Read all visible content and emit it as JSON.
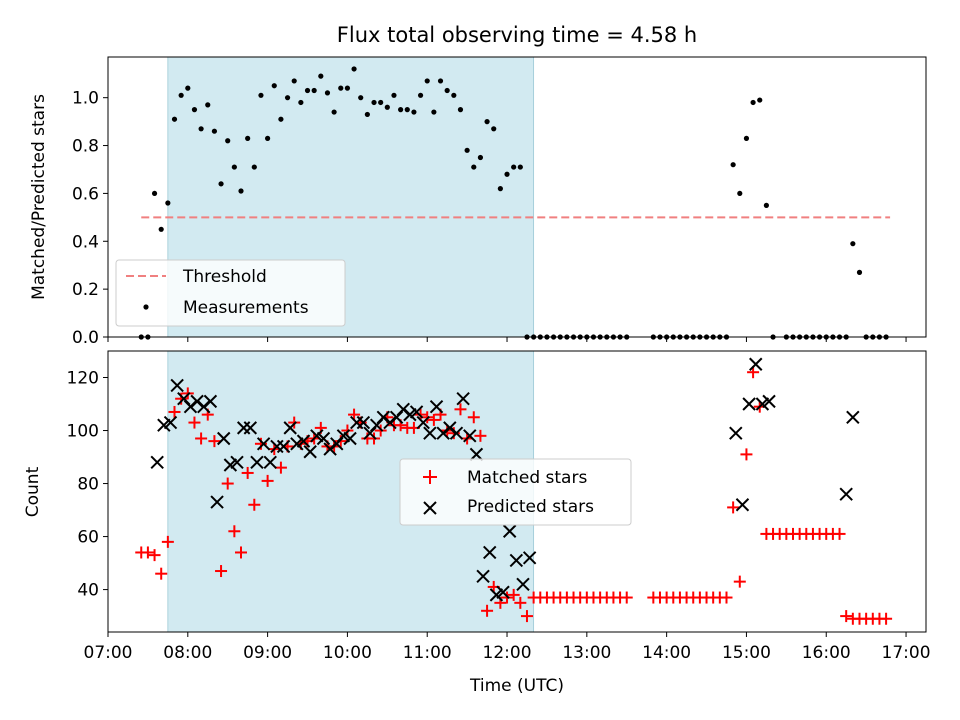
{
  "title": "Flux total observing time = 4.58 h",
  "chart_data": [
    {
      "type": "scatter",
      "panel": "top",
      "ylabel": "Matched/Predicted stars",
      "ylim": [
        0,
        1.17
      ],
      "yticks": [
        0.0,
        0.2,
        0.4,
        0.6,
        0.8,
        1.0
      ],
      "ytick_labels": [
        "0.0",
        "0.2",
        "0.4",
        "0.6",
        "0.8",
        "1.0"
      ],
      "shaded_span": {
        "start": "07:45",
        "end": "12:20"
      },
      "threshold": {
        "name": "Threshold",
        "value": 0.5,
        "start": "07:25",
        "end": "16:48",
        "color": "#f08080"
      },
      "legend": {
        "placement": "lower-left",
        "entries": [
          "Threshold",
          "Measurements"
        ]
      },
      "series": [
        {
          "name": "Measurements",
          "color": "#000000",
          "x": [
            "07:25",
            "07:30",
            "07:35",
            "07:40",
            "07:45",
            "07:50",
            "07:55",
            "08:00",
            "08:05",
            "08:10",
            "08:15",
            "08:20",
            "08:25",
            "08:30",
            "08:35",
            "08:40",
            "08:45",
            "08:50",
            "08:55",
            "09:00",
            "09:05",
            "09:10",
            "09:15",
            "09:20",
            "09:25",
            "09:30",
            "09:35",
            "09:40",
            "09:45",
            "09:50",
            "09:55",
            "10:00",
            "10:05",
            "10:10",
            "10:15",
            "10:20",
            "10:25",
            "10:30",
            "10:35",
            "10:40",
            "10:45",
            "10:50",
            "10:55",
            "11:00",
            "11:05",
            "11:10",
            "11:15",
            "11:20",
            "11:25",
            "11:30",
            "11:35",
            "11:40",
            "11:45",
            "11:50",
            "11:55",
            "12:00",
            "12:05",
            "12:10",
            "12:15",
            "12:20",
            "12:25",
            "12:30",
            "12:35",
            "12:40",
            "12:45",
            "12:50",
            "12:55",
            "13:00",
            "13:05",
            "13:10",
            "13:15",
            "13:20",
            "13:25",
            "13:30",
            "13:50",
            "13:55",
            "14:00",
            "14:05",
            "14:10",
            "14:15",
            "14:20",
            "14:25",
            "14:30",
            "14:35",
            "14:40",
            "14:45",
            "14:50",
            "14:55",
            "15:00",
            "15:05",
            "15:10",
            "15:15",
            "15:20",
            "15:30",
            "15:35",
            "15:40",
            "15:45",
            "15:50",
            "15:55",
            "16:00",
            "16:05",
            "16:10",
            "16:15",
            "16:20",
            "16:25",
            "16:30",
            "16:35",
            "16:40",
            "16:45"
          ],
          "y": [
            0.0,
            0.0,
            0.6,
            0.45,
            0.56,
            0.91,
            1.01,
            1.04,
            0.95,
            0.87,
            0.97,
            0.86,
            0.64,
            0.82,
            0.71,
            0.61,
            0.83,
            0.71,
            1.01,
            0.83,
            1.05,
            0.91,
            1.0,
            1.07,
            0.98,
            1.03,
            1.03,
            1.09,
            1.02,
            0.94,
            1.04,
            1.04,
            1.12,
            1.0,
            0.93,
            0.98,
            0.98,
            0.96,
            1.01,
            0.95,
            0.95,
            0.94,
            1.01,
            1.07,
            0.94,
            1.07,
            1.03,
            1.01,
            0.95,
            0.78,
            0.71,
            0.75,
            0.9,
            0.87,
            0.62,
            0.68,
            0.71,
            0.71,
            0.0,
            0.0,
            0.0,
            0.0,
            0.0,
            0.0,
            0.0,
            0.0,
            0.0,
            0.0,
            0.0,
            0.0,
            0.0,
            0.0,
            0.0,
            0.0,
            0.0,
            0.0,
            0.0,
            0.0,
            0.0,
            0.0,
            0.0,
            0.0,
            0.0,
            0.0,
            0.0,
            0.0,
            0.72,
            0.6,
            0.83,
            0.98,
            0.99,
            0.55,
            0.0,
            0.0,
            0.0,
            0.0,
            0.0,
            0.0,
            0.0,
            0.0,
            0.0,
            0.0,
            0.0,
            0.39,
            0.27,
            0.0,
            0.0,
            0.0,
            0.0
          ]
        }
      ]
    },
    {
      "type": "scatter",
      "panel": "bottom",
      "ylabel": "Count",
      "xlabel": "Time (UTC)",
      "xlim": [
        "07:00",
        "17:15"
      ],
      "xticks": [
        "07:00",
        "08:00",
        "09:00",
        "10:00",
        "11:00",
        "12:00",
        "13:00",
        "14:00",
        "15:00",
        "16:00",
        "17:00"
      ],
      "ylim": [
        24,
        130
      ],
      "yticks": [
        40,
        60,
        80,
        100,
        120
      ],
      "ytick_labels": [
        "40",
        "60",
        "80",
        "100",
        "120"
      ],
      "shaded_span": {
        "start": "07:45",
        "end": "12:20"
      },
      "legend": {
        "placement": "center",
        "entries": [
          "Matched stars",
          "Predicted stars"
        ]
      },
      "series": [
        {
          "name": "Matched stars",
          "marker": "+",
          "color": "#ff0000",
          "x": [
            "07:25",
            "07:30",
            "07:35",
            "07:40",
            "07:45",
            "07:50",
            "07:55",
            "08:00",
            "08:05",
            "08:10",
            "08:15",
            "08:20",
            "08:25",
            "08:30",
            "08:35",
            "08:40",
            "08:45",
            "08:50",
            "08:55",
            "09:00",
            "09:05",
            "09:10",
            "09:15",
            "09:20",
            "09:25",
            "09:30",
            "09:35",
            "09:40",
            "09:45",
            "09:50",
            "09:55",
            "10:00",
            "10:05",
            "10:10",
            "10:15",
            "10:20",
            "10:25",
            "10:30",
            "10:35",
            "10:40",
            "10:45",
            "10:50",
            "10:55",
            "11:00",
            "11:05",
            "11:10",
            "11:15",
            "11:20",
            "11:25",
            "11:30",
            "11:35",
            "11:40",
            "11:45",
            "11:50",
            "11:55",
            "12:00",
            "12:05",
            "12:10",
            "12:15",
            "12:20",
            "12:25",
            "12:30",
            "12:35",
            "12:40",
            "12:45",
            "12:50",
            "12:55",
            "13:00",
            "13:05",
            "13:10",
            "13:15",
            "13:20",
            "13:25",
            "13:30",
            "13:50",
            "13:55",
            "14:00",
            "14:05",
            "14:10",
            "14:15",
            "14:20",
            "14:25",
            "14:30",
            "14:35",
            "14:40",
            "14:45",
            "14:50",
            "14:55",
            "15:00",
            "15:05",
            "15:10",
            "15:15",
            "15:20",
            "15:25",
            "15:30",
            "15:35",
            "15:40",
            "15:45",
            "15:50",
            "15:55",
            "16:00",
            "16:05",
            "16:10",
            "16:15",
            "16:20",
            "16:25",
            "16:30",
            "16:35",
            "16:40",
            "16:45"
          ],
          "y": [
            54,
            54,
            53,
            46,
            58,
            107,
            112,
            114,
            103,
            97,
            106,
            96,
            47,
            80,
            62,
            54,
            84,
            72,
            95,
            81,
            93,
            86,
            94,
            103,
            95,
            96,
            97,
            101,
            94,
            94,
            96,
            100,
            106,
            103,
            97,
            97,
            100,
            105,
            102,
            102,
            101,
            101,
            106,
            105,
            104,
            106,
            100,
            99,
            108,
            97,
            105,
            98,
            32,
            41,
            35,
            37,
            38,
            35,
            30,
            37,
            37,
            37,
            37,
            37,
            37,
            37,
            37,
            37,
            37,
            37,
            37,
            37,
            37,
            37,
            37,
            37,
            37,
            37,
            37,
            37,
            37,
            37,
            37,
            37,
            37,
            37,
            71,
            43,
            91,
            122,
            109,
            61,
            61,
            61,
            61,
            61,
            61,
            61,
            61,
            61,
            61,
            61,
            61,
            30,
            29,
            29,
            29,
            29,
            29,
            29
          ]
        },
        {
          "name": "Predicted stars",
          "marker": "x",
          "color": "#000000",
          "x": [
            "07:37",
            "07:42",
            "07:47",
            "07:52",
            "07:57",
            "08:02",
            "08:07",
            "08:12",
            "08:17",
            "08:22",
            "08:27",
            "08:32",
            "08:37",
            "08:42",
            "08:47",
            "08:52",
            "08:57",
            "09:02",
            "09:07",
            "09:12",
            "09:17",
            "09:22",
            "09:27",
            "09:32",
            "09:37",
            "09:42",
            "09:47",
            "09:52",
            "09:57",
            "10:02",
            "10:07",
            "10:12",
            "10:17",
            "10:22",
            "10:27",
            "10:32",
            "10:37",
            "10:42",
            "10:47",
            "10:52",
            "10:57",
            "11:02",
            "11:07",
            "11:12",
            "11:17",
            "11:22",
            "11:27",
            "11:32",
            "11:37",
            "11:42",
            "11:47",
            "11:52",
            "11:57",
            "12:02",
            "12:07",
            "12:12",
            "12:17",
            "14:52",
            "14:57",
            "15:02",
            "15:07",
            "15:12",
            "15:17",
            "16:15",
            "16:20"
          ],
          "y": [
            88,
            102,
            103,
            117,
            112,
            109,
            111,
            109,
            111,
            73,
            97,
            87,
            88,
            101,
            101,
            88,
            95,
            88,
            94,
            94,
            101,
            95,
            96,
            92,
            98,
            97,
            93,
            95,
            98,
            97,
            103,
            103,
            99,
            102,
            105,
            103,
            105,
            108,
            106,
            107,
            103,
            99,
            109,
            99,
            101,
            99,
            112,
            98,
            91,
            45,
            54,
            38,
            39,
            62,
            51,
            42,
            52,
            99,
            72,
            110,
            125,
            110,
            111,
            76,
            105
          ]
        }
      ]
    }
  ]
}
